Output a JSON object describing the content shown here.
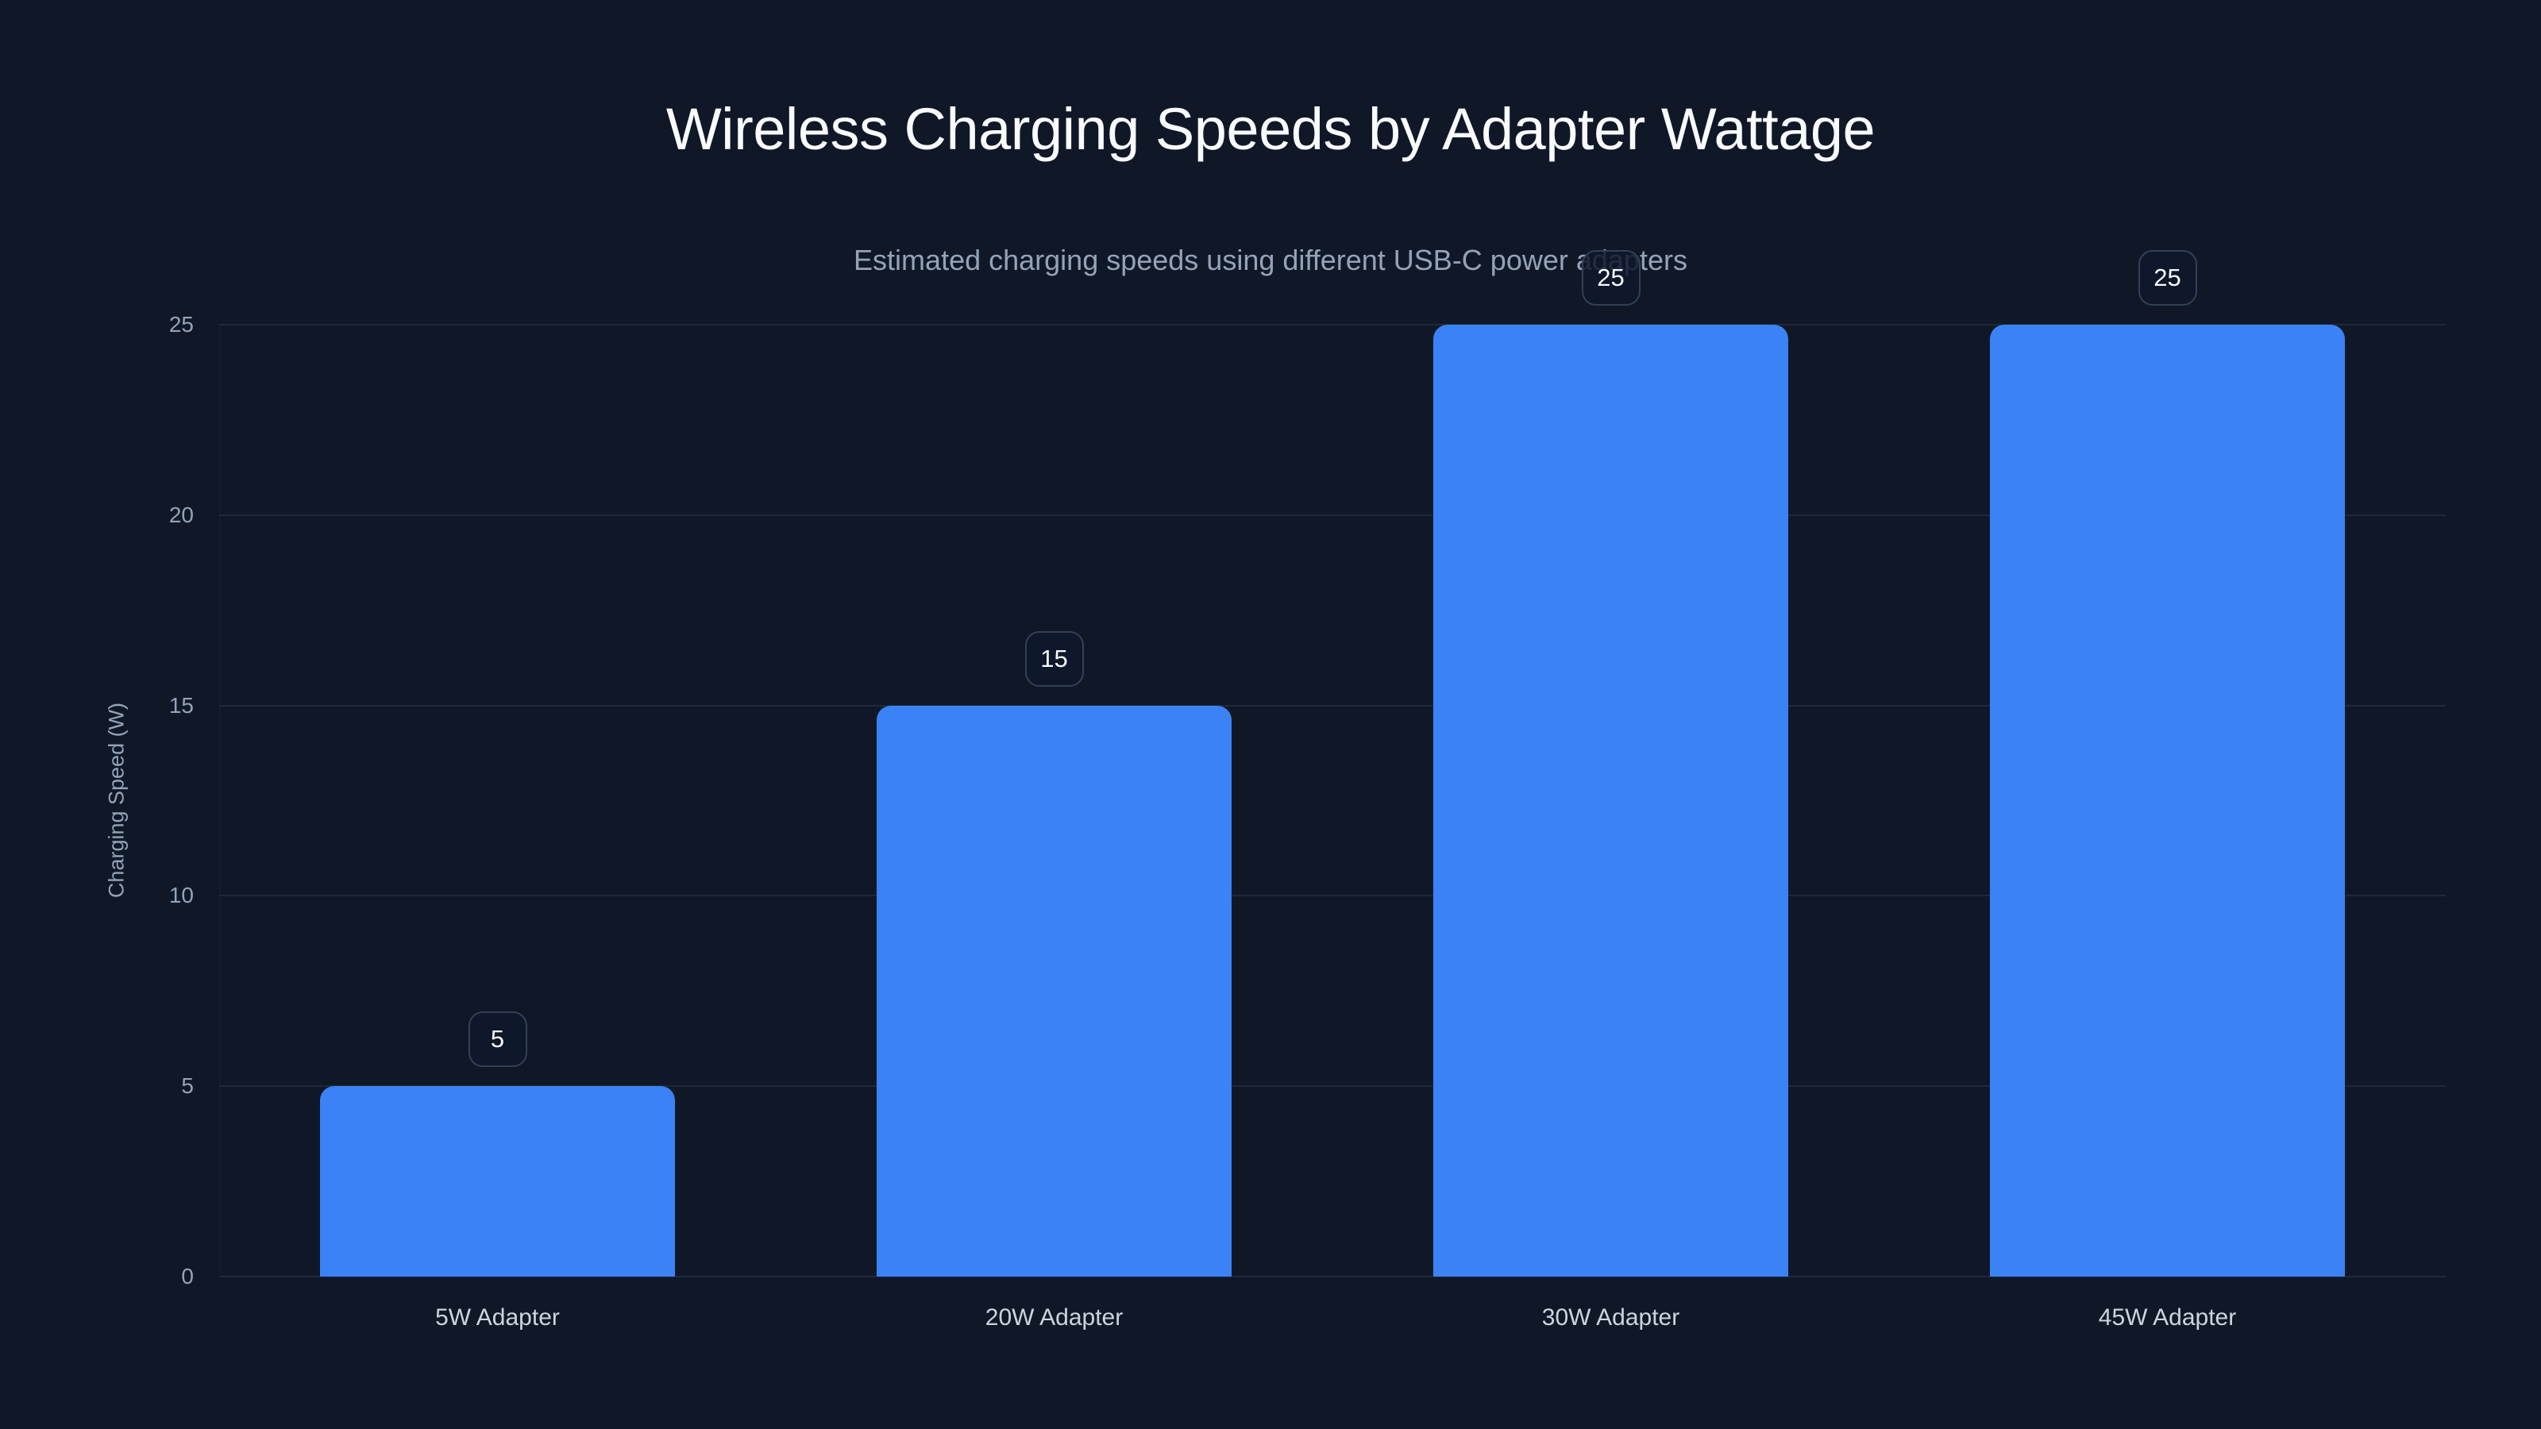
{
  "chart_data": {
    "type": "bar",
    "title": "Wireless Charging Speeds by Adapter Wattage",
    "subtitle": "Estimated charging speeds using different USB-C power adapters",
    "xlabel": "",
    "ylabel": "Charging Speed (W)",
    "categories": [
      "5W Adapter",
      "20W Adapter",
      "30W Adapter",
      "45W Adapter"
    ],
    "values": [
      5,
      15,
      25,
      25
    ],
    "value_labels": [
      "5",
      "15",
      "25",
      "25"
    ],
    "ylim": [
      0,
      25
    ],
    "yticks": [
      0,
      5,
      10,
      15,
      20,
      25
    ],
    "ytick_labels": [
      "0",
      "5",
      "10",
      "15",
      "20",
      "25"
    ],
    "grid": true,
    "legend": null,
    "colors": {
      "background": "#101828",
      "bar": "#3b82f6",
      "gridline": "#1e293b",
      "title": "#f8fafc",
      "subtitle": "#94a3b8",
      "axis_text": "#94a3b8",
      "category_text": "#cbd5e1",
      "value_label_border": "#334155"
    }
  }
}
